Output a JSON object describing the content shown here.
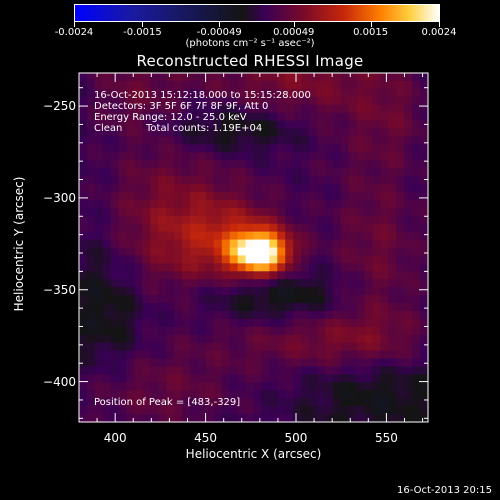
{
  "chart_data": {
    "type": "heatmap",
    "title": "Reconstructed RHESSI Image",
    "xlabel": "Heliocentric X (arcsec)",
    "ylabel": "Heliocentric Y (arcsec)",
    "xlim": [
      380,
      573
    ],
    "ylim": [
      -422,
      -232
    ],
    "x_ticks": [
      400,
      450,
      500,
      550
    ],
    "y_ticks": [
      -250,
      -300,
      -350,
      -400
    ],
    "colorbar": {
      "ticks": [
        "-0.0024",
        "-0.0015",
        "-0.00049",
        "0.00049",
        "0.0015",
        "0.0024"
      ],
      "tick_values": [
        -0.0024,
        -0.0015,
        -0.00049,
        0.00049,
        0.0015,
        0.0024
      ],
      "units": "(photons cm⁻² s⁻¹ asec⁻²)"
    },
    "annotations": {
      "time_range": "16-Oct-2013 15:12:18.000 to 15:15:28.000",
      "detectors": "Detectors: 3F 5F 6F 7F 8F 9F, Att 0",
      "energy": "Energy Range: 12.0 - 25.0 keV",
      "method": "Clean",
      "counts": "Total counts: 1.19E+04",
      "peak": "Position of Peak = [483,-329]"
    },
    "peak": {
      "x": 483,
      "y": -329
    },
    "sources": [
      {
        "x": 480,
        "y": -330,
        "sx": 11,
        "sy": 8,
        "amp": 1.0
      },
      {
        "x": 467,
        "y": -323,
        "sx": 22,
        "sy": 16,
        "amp": 0.3
      },
      {
        "x": 430,
        "y": -315,
        "sx": 28,
        "sy": 30,
        "amp": 0.28
      },
      {
        "x": 500,
        "y": -232,
        "sx": 40,
        "sy": 30,
        "amp": 0.26
      },
      {
        "x": 410,
        "y": -240,
        "sx": 20,
        "sy": 22,
        "amp": 0.16
      },
      {
        "x": 545,
        "y": -330,
        "sx": 20,
        "sy": 40,
        "amp": 0.2
      },
      {
        "x": 515,
        "y": -378,
        "sx": 40,
        "sy": 12,
        "amp": 0.22
      },
      {
        "x": 420,
        "y": -405,
        "sx": 40,
        "sy": 18,
        "amp": 0.18
      },
      {
        "x": 555,
        "y": -255,
        "sx": 16,
        "sy": 18,
        "amp": 0.1
      },
      {
        "x": 470,
        "y": -262,
        "sx": 30,
        "sy": 10,
        "amp": -0.22
      },
      {
        "x": 487,
        "y": -353,
        "sx": 30,
        "sy": 10,
        "amp": -0.18
      },
      {
        "x": 395,
        "y": -360,
        "sx": 15,
        "sy": 30,
        "amp": -0.15
      },
      {
        "x": 545,
        "y": -405,
        "sx": 25,
        "sy": 14,
        "amp": -0.14
      }
    ]
  },
  "stamp": "16-Oct-2013 20:15"
}
